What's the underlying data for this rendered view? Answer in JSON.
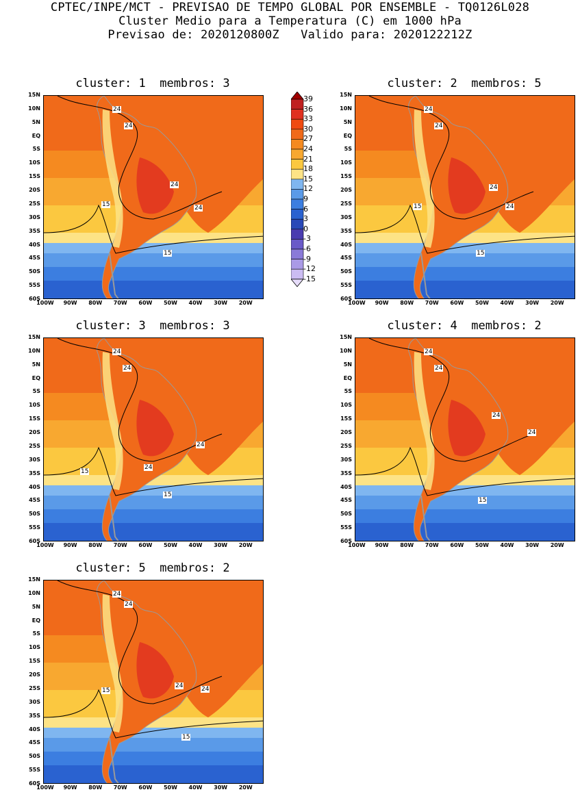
{
  "header": {
    "line1": "CPTEC/INPE/MCT - PREVISAO DE TEMPO GLOBAL POR ENSEMBLE - TQ0126L028",
    "line2": "Cluster Medio para a Temperatura (C) em 1000 hPa",
    "line3": "Previsao de: 2020120800Z   Valido para: 2020122212Z"
  },
  "panels": [
    {
      "title": "cluster: 1  membros: 3",
      "labels": [
        "24",
        "24",
        "24",
        "24",
        "15",
        "15"
      ]
    },
    {
      "title": "cluster: 2  membros: 5",
      "labels": [
        "24",
        "24",
        "24",
        "24",
        "15",
        "15"
      ]
    },
    {
      "title": "cluster: 3  membros: 3",
      "labels": [
        "24",
        "24",
        "24",
        "24",
        "15",
        "15"
      ]
    },
    {
      "title": "cluster: 4  membros: 2",
      "labels": [
        "24",
        "24",
        "24",
        "24",
        "15"
      ]
    },
    {
      "title": "cluster: 5  membros: 2",
      "labels": [
        "24",
        "24",
        "24",
        "24",
        "15",
        "15"
      ]
    }
  ],
  "axes": {
    "lat": [
      "15N",
      "10N",
      "5N",
      "EQ",
      "5S",
      "10S",
      "15S",
      "20S",
      "25S",
      "30S",
      "35S",
      "40S",
      "45S",
      "50S",
      "55S",
      "60S"
    ],
    "lon": [
      "100W",
      "90W",
      "80W",
      "70W",
      "60W",
      "50W",
      "40W",
      "30W",
      "20W"
    ]
  },
  "colorbar": {
    "levels": [
      "39",
      "36",
      "33",
      "30",
      "27",
      "24",
      "21",
      "18",
      "15",
      "12",
      "9",
      "6",
      "3",
      "0",
      "-3",
      "-6",
      "-9",
      "-12",
      "-15"
    ],
    "colors": [
      "#a00000",
      "#c02020",
      "#e03020",
      "#f04a10",
      "#f06a1a",
      "#f58a20",
      "#f8a830",
      "#fbc840",
      "#fde386",
      "#7fb6f0",
      "#5a9ae8",
      "#3c7ee0",
      "#2a62d0",
      "#2848b8",
      "#4a3cb0",
      "#6a5ac8",
      "#8a7ad8",
      "#aa9ae6",
      "#cbbcf2",
      "#e6dcfa"
    ]
  }
}
